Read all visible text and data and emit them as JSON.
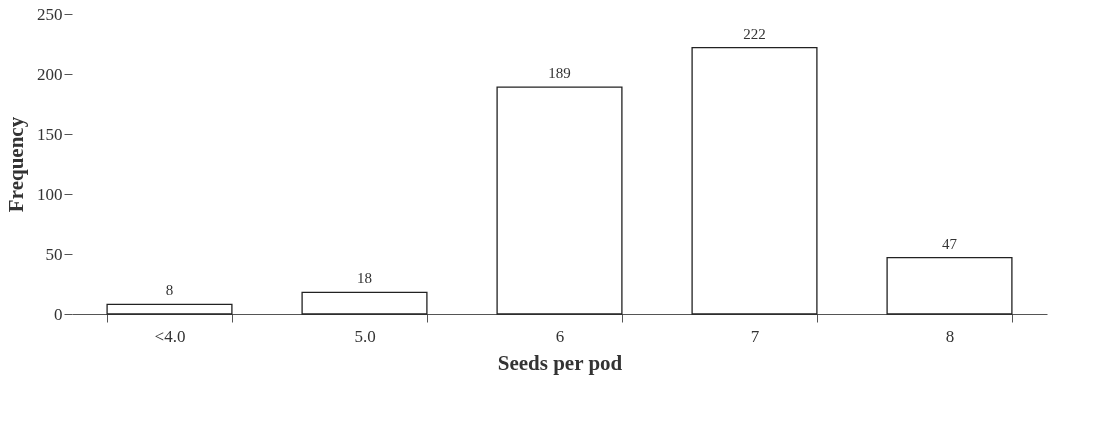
{
  "chart_data": {
    "type": "bar",
    "xlabel": "Seeds per pod",
    "ylabel": "Frequency",
    "categories": [
      "<4.0",
      "5.0",
      "6",
      "7",
      "8"
    ],
    "values": [
      8,
      18,
      189,
      222,
      47
    ],
    "color": "#ffffff",
    "ylim": [
      0,
      250
    ],
    "yticks": [
      0,
      50,
      100,
      150,
      200,
      250
    ],
    "grid": false,
    "data_labels": true
  }
}
